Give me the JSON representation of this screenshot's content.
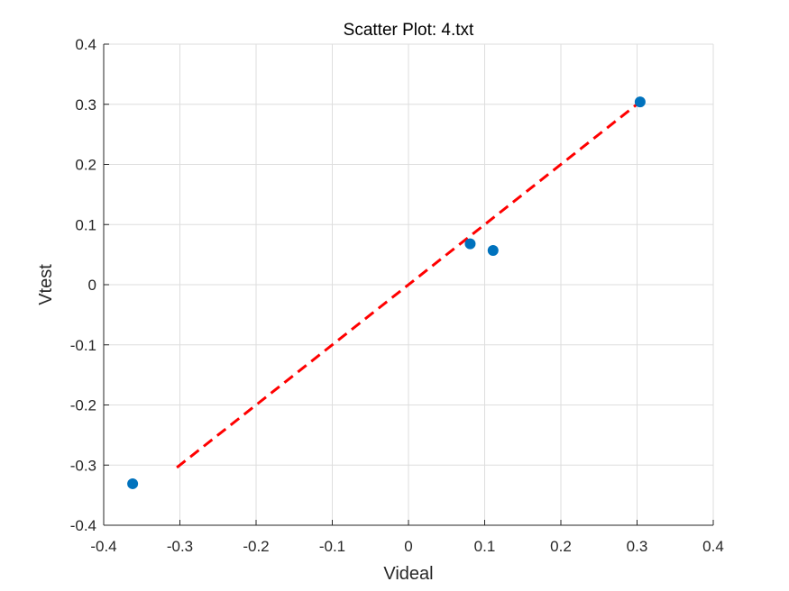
{
  "chart_data": {
    "type": "scatter",
    "title": "Scatter Plot: 4.txt",
    "xlabel": "Videal",
    "ylabel": "Vtest",
    "xlim": [
      -0.4,
      0.4
    ],
    "ylim": [
      -0.4,
      0.4
    ],
    "xticks": [
      -0.4,
      -0.3,
      -0.2,
      -0.1,
      0,
      0.1,
      0.2,
      0.3,
      0.4
    ],
    "yticks": [
      -0.4,
      -0.3,
      -0.2,
      -0.1,
      0,
      0.1,
      0.2,
      0.3,
      0.4
    ],
    "xtick_labels": [
      "-0.4",
      "-0.3",
      "-0.2",
      "-0.1",
      "0",
      "0.1",
      "0.2",
      "0.3",
      "0.4"
    ],
    "ytick_labels": [
      "-0.4",
      "-0.3",
      "-0.2",
      "-0.1",
      "0",
      "0.1",
      "0.2",
      "0.3",
      "0.4"
    ],
    "grid": true,
    "series": [
      {
        "type": "scatter",
        "color": "#0072bd",
        "x": [
          -0.362,
          0.081,
          0.111,
          0.304
        ],
        "y": [
          -0.331,
          0.068,
          0.057,
          0.304
        ]
      },
      {
        "type": "line",
        "style": "dashed",
        "color": "#ff0000",
        "x": [
          -0.304,
          0.304
        ],
        "y": [
          -0.304,
          0.304
        ]
      }
    ]
  }
}
